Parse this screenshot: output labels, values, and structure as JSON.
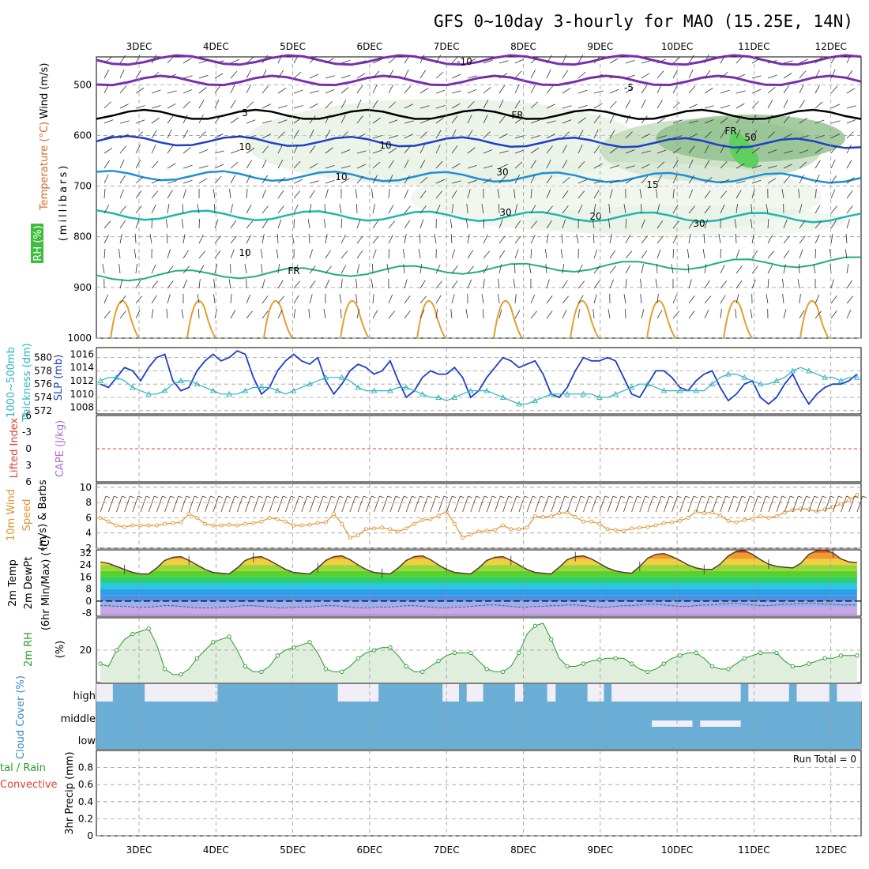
{
  "title": "GFS 0~10day 3-hourly for MAO (15.25E, 14N)",
  "days": [
    "3DEC",
    "4DEC",
    "5DEC",
    "6DEC",
    "7DEC",
    "8DEC",
    "9DEC",
    "10DEC",
    "11DEC",
    "12DEC"
  ],
  "colors": {
    "slp": "#1f3fc4",
    "thickness": "#2bb3c0",
    "wind_speed": "#e3922a",
    "barb": "#5a3a1a",
    "rh_fill": "#dfeedd",
    "rh_line": "#2a9a2a",
    "cloud": "#6aaed6",
    "cloud_bg": "#f2eef7",
    "t850": "#7b2fb0"
  },
  "panels": {
    "upper": {
      "ylabel_wind": "Wind (m/s)",
      "ylabel_temp": "Temperature (°C)",
      "ylabel_rh": "RH (%)",
      "ylabel_mb": "(millibars)",
      "yticks": [
        "500",
        "600",
        "700",
        "800",
        "900",
        "1000"
      ],
      "contour_labels": [
        "-10",
        "-5",
        "5",
        "10",
        "10",
        "15",
        "20",
        "FR",
        "FR",
        "FR",
        "30",
        "30",
        "30",
        "50",
        "10",
        "10"
      ]
    },
    "slp": {
      "ylabel_left": "1000~500mb",
      "ylabel_left2": "Thickness (dm)",
      "ylabel_right": "SLP (mb)",
      "yticks_thickness": [
        "580",
        "578",
        "576",
        "574",
        "572"
      ],
      "yticks_slp": [
        "1016",
        "1014",
        "1012",
        "1010",
        "1008"
      ]
    },
    "cape": {
      "ylabel_li": "Lifted Index",
      "ylabel_cape": "CAPE (J/kg)",
      "yticks": [
        "-6",
        "-3",
        "0",
        "3",
        "6"
      ]
    },
    "wind10": {
      "ylabel1": "10m Wind",
      "ylabel2": "Speed",
      "ylabel3": "(m/s) & Barbs",
      "yticks": [
        "10",
        "8",
        "6",
        "4",
        "2"
      ]
    },
    "temp2m": {
      "ylabel1": "2m Temp",
      "ylabel2": "2m DewPt",
      "ylabel3": "(6hr Min/Max) (°C)",
      "yticks": [
        "32",
        "24",
        "16",
        "8",
        "0",
        "-8"
      ]
    },
    "rh2m": {
      "ylabel1": "2m RH",
      "ylabel2": "(%)",
      "yticks": [
        "20"
      ]
    },
    "cloud": {
      "ylabel": "Cloud Cover (%)",
      "levels": [
        "high",
        "middle",
        "low"
      ]
    },
    "precip": {
      "ylabel1": "tal / Rain",
      "ylabel2": "Convective",
      "ylabel3": "3hr Precip (mm)",
      "run_total": "Run Total = 0",
      "yticks": [
        "0.8",
        "0.6",
        "0.4",
        "0.2",
        "0"
      ]
    }
  },
  "chart_data": [
    {
      "type": "line",
      "name": "slp_thickness",
      "x_unit": "3-hourly step from 2 DEC 12Z",
      "series": [
        {
          "name": "SLP (mb)",
          "values": [
            1011.5,
            1011,
            1012.5,
            1014,
            1013.5,
            1012,
            1014,
            1015.5,
            1016,
            1012,
            1010.5,
            1011,
            1013.5,
            1015,
            1016,
            1015,
            1015.5,
            1016.5,
            1016,
            1012.5,
            1010,
            1011,
            1013.5,
            1015,
            1016,
            1015,
            1014.5,
            1015.5,
            1012,
            1010,
            1011.5,
            1013.5,
            1014.5,
            1014,
            1013,
            1013.5,
            1015,
            1012,
            1009.5,
            1010.5,
            1012.5,
            1013.5,
            1013,
            1013,
            1014,
            1012.5,
            1009.5,
            1010.5,
            1012.5,
            1014,
            1015.5,
            1015,
            1014,
            1014.5,
            1015,
            1013,
            1010,
            1009.5,
            1011,
            1013.5,
            1015.5,
            1015,
            1015,
            1015.5,
            1015,
            1012.5,
            1010,
            1009.5,
            1011.5,
            1013.5,
            1013.5,
            1012.5,
            1011,
            1010.5,
            1012,
            1013,
            1013.5,
            1011,
            1009,
            1010,
            1011.5,
            1012,
            1009.5,
            1008.5,
            1009.5,
            1011.5,
            1013,
            1010.5,
            1008.5,
            1010,
            1011,
            1011.5,
            1011.5,
            1012,
            1013
          ]
        },
        {
          "name": "Thickness (dm)",
          "values": [
            576.5,
            577,
            577,
            576.5,
            575.5,
            575,
            574.5,
            574.5,
            575,
            576,
            576.5,
            576.5,
            576,
            575.5,
            575,
            574.5,
            574.5,
            574.5,
            575,
            575.5,
            575.5,
            575.5,
            575,
            574.5,
            575,
            575.5,
            576,
            576.5,
            577,
            577,
            577,
            576.5,
            575.5,
            575,
            575,
            575,
            575,
            575.5,
            575.5,
            575,
            574.5,
            574,
            574,
            573.5,
            574,
            574.5,
            575,
            575,
            575,
            574.5,
            574,
            573.5,
            573,
            573,
            573.5,
            574,
            574.5,
            574.5,
            574.5,
            574.5,
            574.5,
            574.5,
            574,
            574,
            574.5,
            575,
            575.5,
            576,
            576,
            575.5,
            575,
            575,
            575,
            575,
            575,
            575,
            576,
            577,
            577.5,
            577.5,
            577,
            576.5,
            576,
            576,
            576.5,
            577,
            578,
            578.5,
            578,
            577.5,
            577,
            577,
            576.5,
            577,
            577
          ]
        }
      ],
      "ylim_thickness": [
        571.5,
        581.5
      ],
      "ylim_slp": [
        1007,
        1017
      ]
    },
    {
      "type": "line",
      "name": "cape_lifted_index",
      "series": [
        {
          "name": "Lifted Index",
          "values": [
            0
          ]
        }
      ],
      "ylim": [
        -6,
        6
      ]
    },
    {
      "type": "line",
      "name": "wind10m",
      "series": [
        {
          "name": "10m wind speed (m/s)",
          "values": [
            6,
            5.5,
            5,
            4.8,
            5,
            5,
            5,
            5,
            5.2,
            5.3,
            5.4,
            6.5,
            6,
            5.2,
            5,
            5,
            5.1,
            5,
            5.2,
            5.3,
            5.5,
            6,
            5.8,
            5.5,
            5,
            5,
            5.1,
            5.3,
            5.4,
            6.5,
            5.2,
            3.4,
            3.7,
            4.5,
            4.6,
            4.7,
            4.5,
            4.2,
            4.6,
            5.2,
            5.7,
            5.8,
            6.3,
            6.8,
            5.2,
            3.4,
            3.8,
            4.2,
            4.3,
            4.4,
            5,
            4.5,
            4.5,
            4.7,
            6.2,
            6.1,
            6.2,
            6.6,
            6.7,
            6.1,
            5.5,
            5.5,
            5.2,
            4.5,
            4.4,
            4.3,
            4.6,
            4.7,
            4.8,
            5,
            5.3,
            5.4,
            5.6,
            6,
            6.8,
            6.6,
            6.7,
            6.3,
            5.6,
            5.4,
            5.7,
            5.9,
            6.2,
            6,
            6.2,
            6.7,
            7,
            7.2,
            7.1,
            6.8,
            7.1,
            7.4,
            7.8,
            8.3,
            9
          ]
        }
      ],
      "ylim": [
        2,
        10.5
      ]
    },
    {
      "type": "area",
      "name": "temp2m",
      "series": [
        {
          "name": "2m Temp",
          "values": [
            26,
            25,
            23,
            21,
            19,
            18,
            18,
            22,
            27,
            29,
            29.5,
            27,
            24,
            21,
            19,
            18.5,
            18,
            22,
            27,
            29,
            29.5,
            27,
            24,
            21,
            19,
            18.5,
            18,
            22,
            27,
            29.5,
            30,
            27.5,
            24,
            21,
            19,
            18.5,
            18,
            22,
            27,
            29.5,
            30,
            27.5,
            24,
            21,
            19,
            18.5,
            18,
            22,
            27,
            29,
            29.5,
            27,
            24,
            21,
            19,
            18.5,
            18,
            22.5,
            27.5,
            29.5,
            30,
            28,
            25,
            22,
            20,
            19,
            18.5,
            23,
            28.5,
            31,
            31.5,
            29.5,
            27,
            24,
            22,
            21,
            21,
            24.5,
            30,
            33,
            33.5,
            31,
            27.5,
            24.5,
            23,
            22.5,
            22,
            25,
            31,
            33.5,
            34,
            32,
            28,
            26,
            25.5
          ]
        },
        {
          "name": "2m DewPt",
          "values": [
            -3,
            -3,
            -3.5,
            -3.5,
            -4,
            -4,
            -4,
            -3.5,
            -3,
            -3,
            -3.5,
            -4,
            -4.5,
            -4.5,
            -4.5,
            -4,
            -4,
            -3.5,
            -3,
            -3,
            -3.5,
            -4,
            -4.5,
            -4.5,
            -4,
            -4,
            -4,
            -3.5,
            -3,
            -3,
            -3.5,
            -4,
            -4.5,
            -4.5,
            -4,
            -4,
            -4,
            -3.5,
            -3,
            -3,
            -3.5,
            -4,
            -4.5,
            -4.5,
            -4,
            -4,
            -3.5,
            -3,
            -2.5,
            -2.5,
            -3,
            -3.5,
            -4,
            -4,
            -3.5,
            -3.5,
            -3,
            -3,
            -2.5,
            -2.5,
            -3,
            -3.5,
            -4,
            -4,
            -3.5,
            -3,
            -3,
            -2.5,
            -2,
            -2,
            -2.5,
            -3,
            -3.5,
            -3.5,
            -3,
            -2.5,
            -2.5,
            -2,
            -1.5,
            -1.5,
            -2,
            -2.5,
            -3,
            -3,
            -2.5,
            -2,
            -2,
            -1.5,
            -1.5,
            -1.5,
            -2,
            -2,
            -2.5,
            -2.5,
            -2.5
          ]
        }
      ],
      "ylim": [
        -10,
        34
      ]
    },
    {
      "type": "area",
      "name": "rh2m",
      "series": [
        {
          "name": "2m RH (%)",
          "values": [
            15,
            14,
            20,
            24,
            26,
            27,
            28,
            22,
            13,
            11,
            11,
            13,
            17,
            20,
            23,
            24,
            25,
            20,
            14,
            12,
            12,
            14,
            18,
            20,
            21,
            22,
            23,
            19,
            13,
            12,
            12,
            14,
            17,
            19,
            20,
            21,
            21,
            18,
            14,
            12,
            12,
            14,
            16,
            18,
            19,
            19,
            19,
            16,
            13,
            12,
            12,
            14,
            19,
            26,
            29,
            30,
            24,
            17,
            14,
            14,
            15,
            16,
            16.5,
            17,
            17,
            17,
            15,
            13,
            12,
            13,
            15,
            17,
            18,
            19,
            19,
            17,
            14,
            13,
            13,
            15,
            17,
            18,
            19,
            19,
            19,
            16,
            14,
            14,
            15,
            16,
            17,
            17,
            18,
            18,
            18
          ]
        }
      ],
      "ylim": [
        8,
        32
      ]
    },
    {
      "type": "table",
      "name": "cloud_cover",
      "levels": [
        "high",
        "middle",
        "low"
      ],
      "high_clear_steps": [
        0,
        1,
        6,
        7,
        8,
        9,
        10,
        11,
        12,
        13,
        14,
        30,
        31,
        32,
        33,
        34,
        43,
        44,
        46,
        47,
        52,
        56,
        61,
        62,
        64,
        65,
        66,
        67,
        68,
        69,
        70,
        71,
        72,
        73,
        74,
        75,
        76,
        77,
        78,
        79,
        81,
        82,
        83,
        84,
        85,
        87,
        88,
        89,
        90,
        92,
        93,
        94
      ],
      "middle_clear_steps": [
        69,
        70,
        71,
        72,
        73,
        75,
        76,
        77,
        78,
        79
      ]
    },
    {
      "type": "bar",
      "name": "precip3h",
      "values": [],
      "ylim": [
        0,
        1
      ],
      "run_total": 0
    }
  ]
}
